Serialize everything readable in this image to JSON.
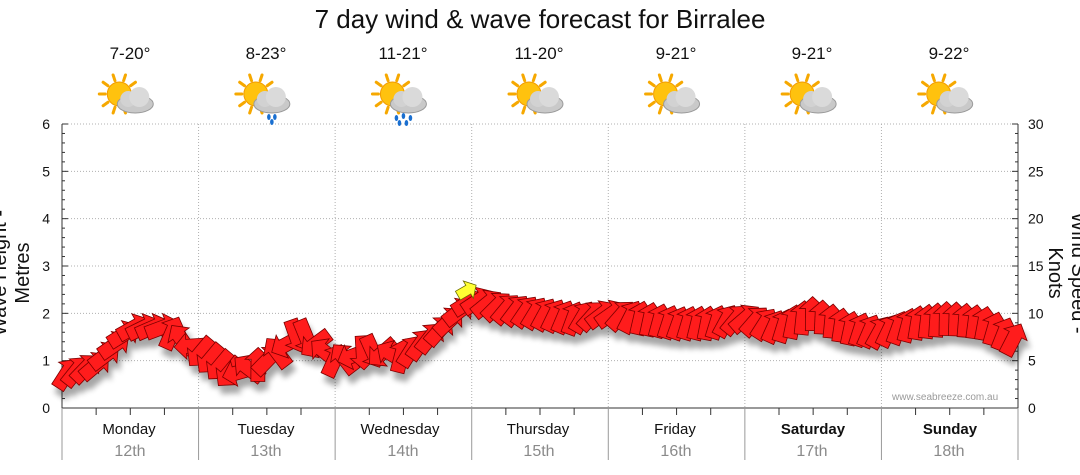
{
  "title": "7 day wind & wave forecast for Birralee",
  "website": "www.seabreeze.com.au",
  "days": [
    {
      "name": "Monday",
      "date": "12th",
      "temp": "7-20°",
      "icon": "partly-cloudy-icon",
      "bold": false
    },
    {
      "name": "Tuesday",
      "date": "13th",
      "temp": "8-23°",
      "icon": "light-rain-icon",
      "bold": false
    },
    {
      "name": "Wednesday",
      "date": "14th",
      "temp": "11-21°",
      "icon": "rain-icon",
      "bold": false
    },
    {
      "name": "Thursday",
      "date": "15th",
      "temp": "11-20°",
      "icon": "partly-cloudy-icon",
      "bold": false
    },
    {
      "name": "Friday",
      "date": "16th",
      "temp": "9-21°",
      "icon": "partly-cloudy-icon",
      "bold": false
    },
    {
      "name": "Saturday",
      "date": "17th",
      "temp": "9-21°",
      "icon": "partly-cloudy-icon",
      "bold": true
    },
    {
      "name": "Sunday",
      "date": "18th",
      "temp": "9-22°",
      "icon": "partly-cloudy-icon",
      "bold": true
    }
  ],
  "colors": {
    "arrow": "#ff1a1a",
    "arrow_edge": "#7a0000",
    "highlight": "#ffff33",
    "grid": "#b0b0b0"
  },
  "chart_data": {
    "type": "line",
    "title": "7 day wind & wave forecast for Birralee",
    "ylabel_left": "Wave Height - Metres",
    "ylabel_right": "Wind Speed - Knots",
    "ylim_left": [
      0,
      6
    ],
    "ylim_right": [
      0,
      30
    ],
    "yticks_left": [
      0,
      1,
      2,
      3,
      4,
      5,
      6
    ],
    "yticks_right": [
      0,
      5,
      10,
      15,
      20,
      25,
      30
    ],
    "x_categories": [
      "Monday",
      "Tuesday",
      "Wednesday",
      "Thursday",
      "Friday",
      "Saturday",
      "Sunday"
    ],
    "series": [
      {
        "name": "Wind Speed (knots)",
        "unit": "knots",
        "x_days": [
          0,
          0.25,
          0.5,
          0.75,
          1,
          1.25,
          1.5,
          1.75,
          2,
          2.25,
          2.5,
          2.75,
          3,
          3.25,
          3.5,
          3.75,
          4,
          4.25,
          4.5,
          4.75,
          5,
          5.25,
          5.5,
          5.75,
          6,
          6.25,
          6.5,
          6.75,
          7
        ],
        "values": [
          3.5,
          4.5,
          8.5,
          8.5,
          6,
          3.5,
          5,
          8,
          5,
          6,
          5.5,
          8,
          11.5,
          10.5,
          10,
          9.5,
          10,
          9.5,
          9,
          9,
          9.5,
          8.5,
          10,
          8.5,
          8,
          9,
          9.5,
          9,
          7
        ],
        "direction_deg": [
          60,
          40,
          30,
          20,
          230,
          230,
          40,
          330,
          60,
          320,
          60,
          50,
          30,
          50,
          60,
          70,
          30,
          80,
          70,
          80,
          40,
          70,
          90,
          80,
          60,
          80,
          90,
          80,
          60
        ],
        "highlight_index": 12
      }
    ]
  }
}
